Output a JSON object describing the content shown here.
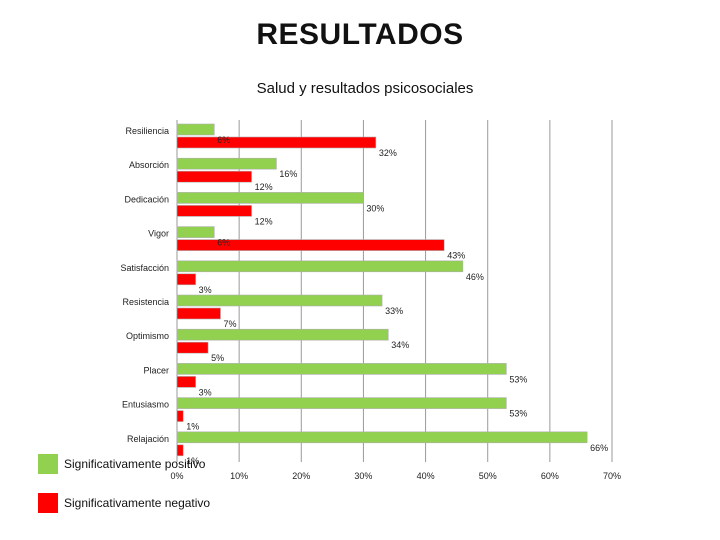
{
  "page_title": "RESULTADOS",
  "legend": [
    {
      "label": "Significativamente positivo",
      "color": "#92d050"
    },
    {
      "label": "Significativamente negativo",
      "color": "#ff0000"
    }
  ],
  "chart_data": {
    "type": "bar",
    "orientation": "horizontal",
    "title": "Salud y resultados psicosociales",
    "xlabel": "",
    "ylabel": "",
    "xlim": [
      0,
      70
    ],
    "x_ticks": [
      "0%",
      "10%",
      "20%",
      "30%",
      "40%",
      "50%",
      "60%",
      "70%"
    ],
    "grid": true,
    "legend_position": "bottom-left",
    "categories": [
      "Resiliencia",
      "Absorción",
      "Dedicación",
      "Vigor",
      "Satisfacción",
      "Resistencia",
      "Optimismo",
      "Placer",
      "Entusiasmo",
      "Relajación"
    ],
    "series": [
      {
        "name": "Significativamente positivo",
        "color": "#92d050",
        "values": [
          6,
          16,
          30,
          6,
          46,
          33,
          34,
          53,
          53,
          66
        ]
      },
      {
        "name": "Significativamente negativo",
        "color": "#ff0000",
        "values": [
          32,
          12,
          12,
          43,
          3,
          7,
          5,
          3,
          1,
          1
        ]
      }
    ]
  }
}
